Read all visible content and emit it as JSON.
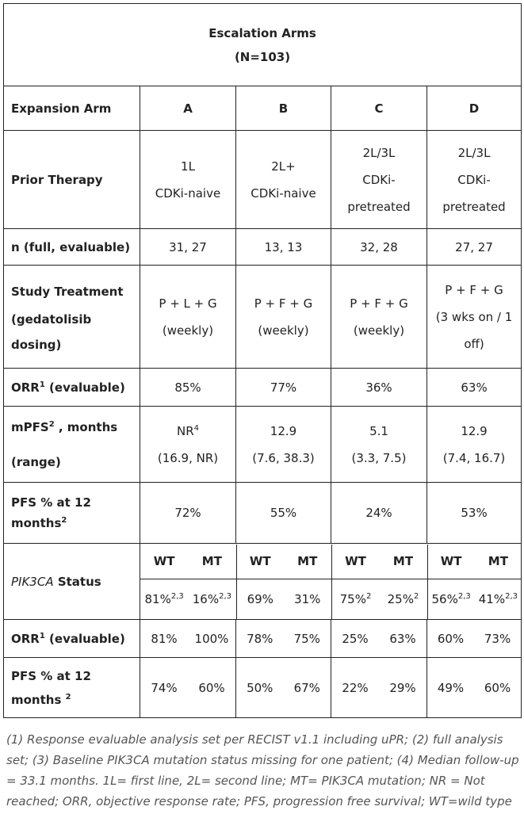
{
  "banner": {
    "title": "Escalation Arms",
    "n": "(N=103)"
  },
  "header": {
    "label": "Expansion Arm",
    "arms": [
      "A",
      "B",
      "C",
      "D"
    ]
  },
  "prior_therapy": {
    "label": "Prior Therapy",
    "cells": [
      [
        "1L",
        "CDKi-naive"
      ],
      [
        "2L+",
        "CDKi-naive"
      ],
      [
        "2L/3L",
        "CDKi-",
        "pretreated"
      ],
      [
        "2L/3L",
        "CDKi-",
        "pretreated"
      ]
    ]
  },
  "n_row": {
    "label": "n (full, evaluable)",
    "cells": [
      "31, 27",
      "13, 13",
      "32, 28",
      "27, 27"
    ]
  },
  "study_treatment": {
    "label": [
      "Study Treatment",
      "(gedatolisib",
      "dosing)"
    ],
    "cells": [
      [
        "P + L + G",
        "(weekly)"
      ],
      [
        "P + F + G",
        "(weekly)"
      ],
      [
        "P + F + G",
        "(weekly)"
      ],
      [
        "P + F + G",
        "(3 wks on / 1",
        "off)"
      ]
    ]
  },
  "orr": {
    "label": "ORR",
    "sup": "1",
    "label_tail": " (evaluable)",
    "cells": [
      "85%",
      "77%",
      "36%",
      "63%"
    ]
  },
  "mpfs": {
    "label": "mPFS",
    "sup": "2",
    "label_tail": " , months",
    "label2": "(range)",
    "cells": [
      {
        "v": "NR",
        "sup": "4",
        "r": "(16.9, NR)"
      },
      {
        "v": "12.9",
        "sup": "",
        "r": "(7.6, 38.3)"
      },
      {
        "v": "5.1",
        "sup": "",
        "r": "(3.3, 7.5)"
      },
      {
        "v": "12.9",
        "sup": "",
        "r": "(7.4, 16.7)"
      }
    ]
  },
  "pfs12": {
    "label1": "PFS % at 12",
    "label2": "months",
    "sup": "2",
    "cells": [
      "72%",
      "55%",
      "24%",
      "53%"
    ]
  },
  "pik3ca": {
    "label_it": "PIK3CA",
    "label_tail": " Status",
    "wt": "WT",
    "mt": "MT",
    "cells": [
      {
        "wt": "81%",
        "wt_sup": "2,3",
        "mt": "16%",
        "mt_sup": "2,3"
      },
      {
        "wt": "69%",
        "wt_sup": "",
        "mt": "31%",
        "mt_sup": ""
      },
      {
        "wt": "75%",
        "wt_sup": "2",
        "mt": "25%",
        "mt_sup": "2"
      },
      {
        "wt": "56%",
        "wt_sup": "2,3",
        "mt": "41%",
        "mt_sup": "2,3"
      }
    ]
  },
  "orr_sub": {
    "label": "ORR",
    "sup": "1",
    "label_tail": " (evaluable)",
    "cells": [
      [
        "81%",
        "100%"
      ],
      [
        "78%",
        "75%"
      ],
      [
        "25%",
        "63%"
      ],
      [
        "60%",
        "73%"
      ]
    ]
  },
  "pfs12_sub": {
    "label1": "PFS % at 12",
    "label2": "months ",
    "sup": "2",
    "cells": [
      [
        "74%",
        "60%"
      ],
      [
        "50%",
        "67%"
      ],
      [
        "22%",
        "29%"
      ],
      [
        "49%",
        "60%"
      ]
    ]
  },
  "footnote": "(1) Response evaluable analysis set per RECIST v1.1 including uPR; (2) full analysis set; (3) Baseline PIK3CA mutation status missing for one patient; (4) Median follow-up = 33.1 months. 1L= first line, 2L= second line; MT= PIK3CA mutation; NR = Not reached; ORR, objective response rate; PFS, progression free survival; WT=wild type"
}
